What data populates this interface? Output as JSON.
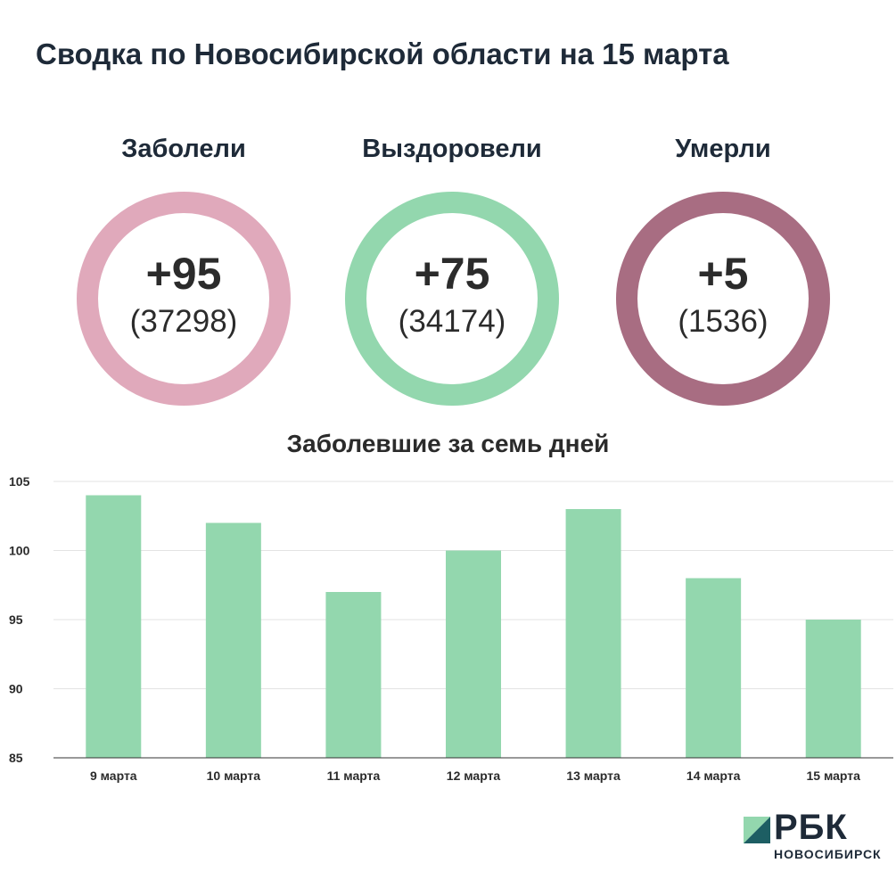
{
  "title": "Сводка по Новосибирской области на 15 марта",
  "stats": [
    {
      "label": "Заболели",
      "delta": "+95",
      "total": "(37298)",
      "color": "#e0a9bb"
    },
    {
      "label": "Выздоровели",
      "delta": "+75",
      "total": "(34174)",
      "color": "#93d7ae"
    },
    {
      "label": "Умерли",
      "delta": "+5",
      "total": "(1536)",
      "color": "#a86d82"
    }
  ],
  "chart_data": {
    "type": "bar",
    "title": "Заболевшие за семь дней",
    "categories": [
      "9 марта",
      "10 марта",
      "11 марта",
      "12 марта",
      "13 марта",
      "14 марта",
      "15 марта"
    ],
    "values": [
      104,
      102,
      97,
      100,
      103,
      98,
      95
    ],
    "ylim": [
      85,
      105
    ],
    "yticks": [
      85,
      90,
      95,
      100,
      105
    ],
    "grid": true,
    "bar_color": "#93d7ae",
    "xlabel": "",
    "ylabel": ""
  },
  "logo": {
    "name": "РБК",
    "subtitle": "НОВОСИБИРСК"
  }
}
